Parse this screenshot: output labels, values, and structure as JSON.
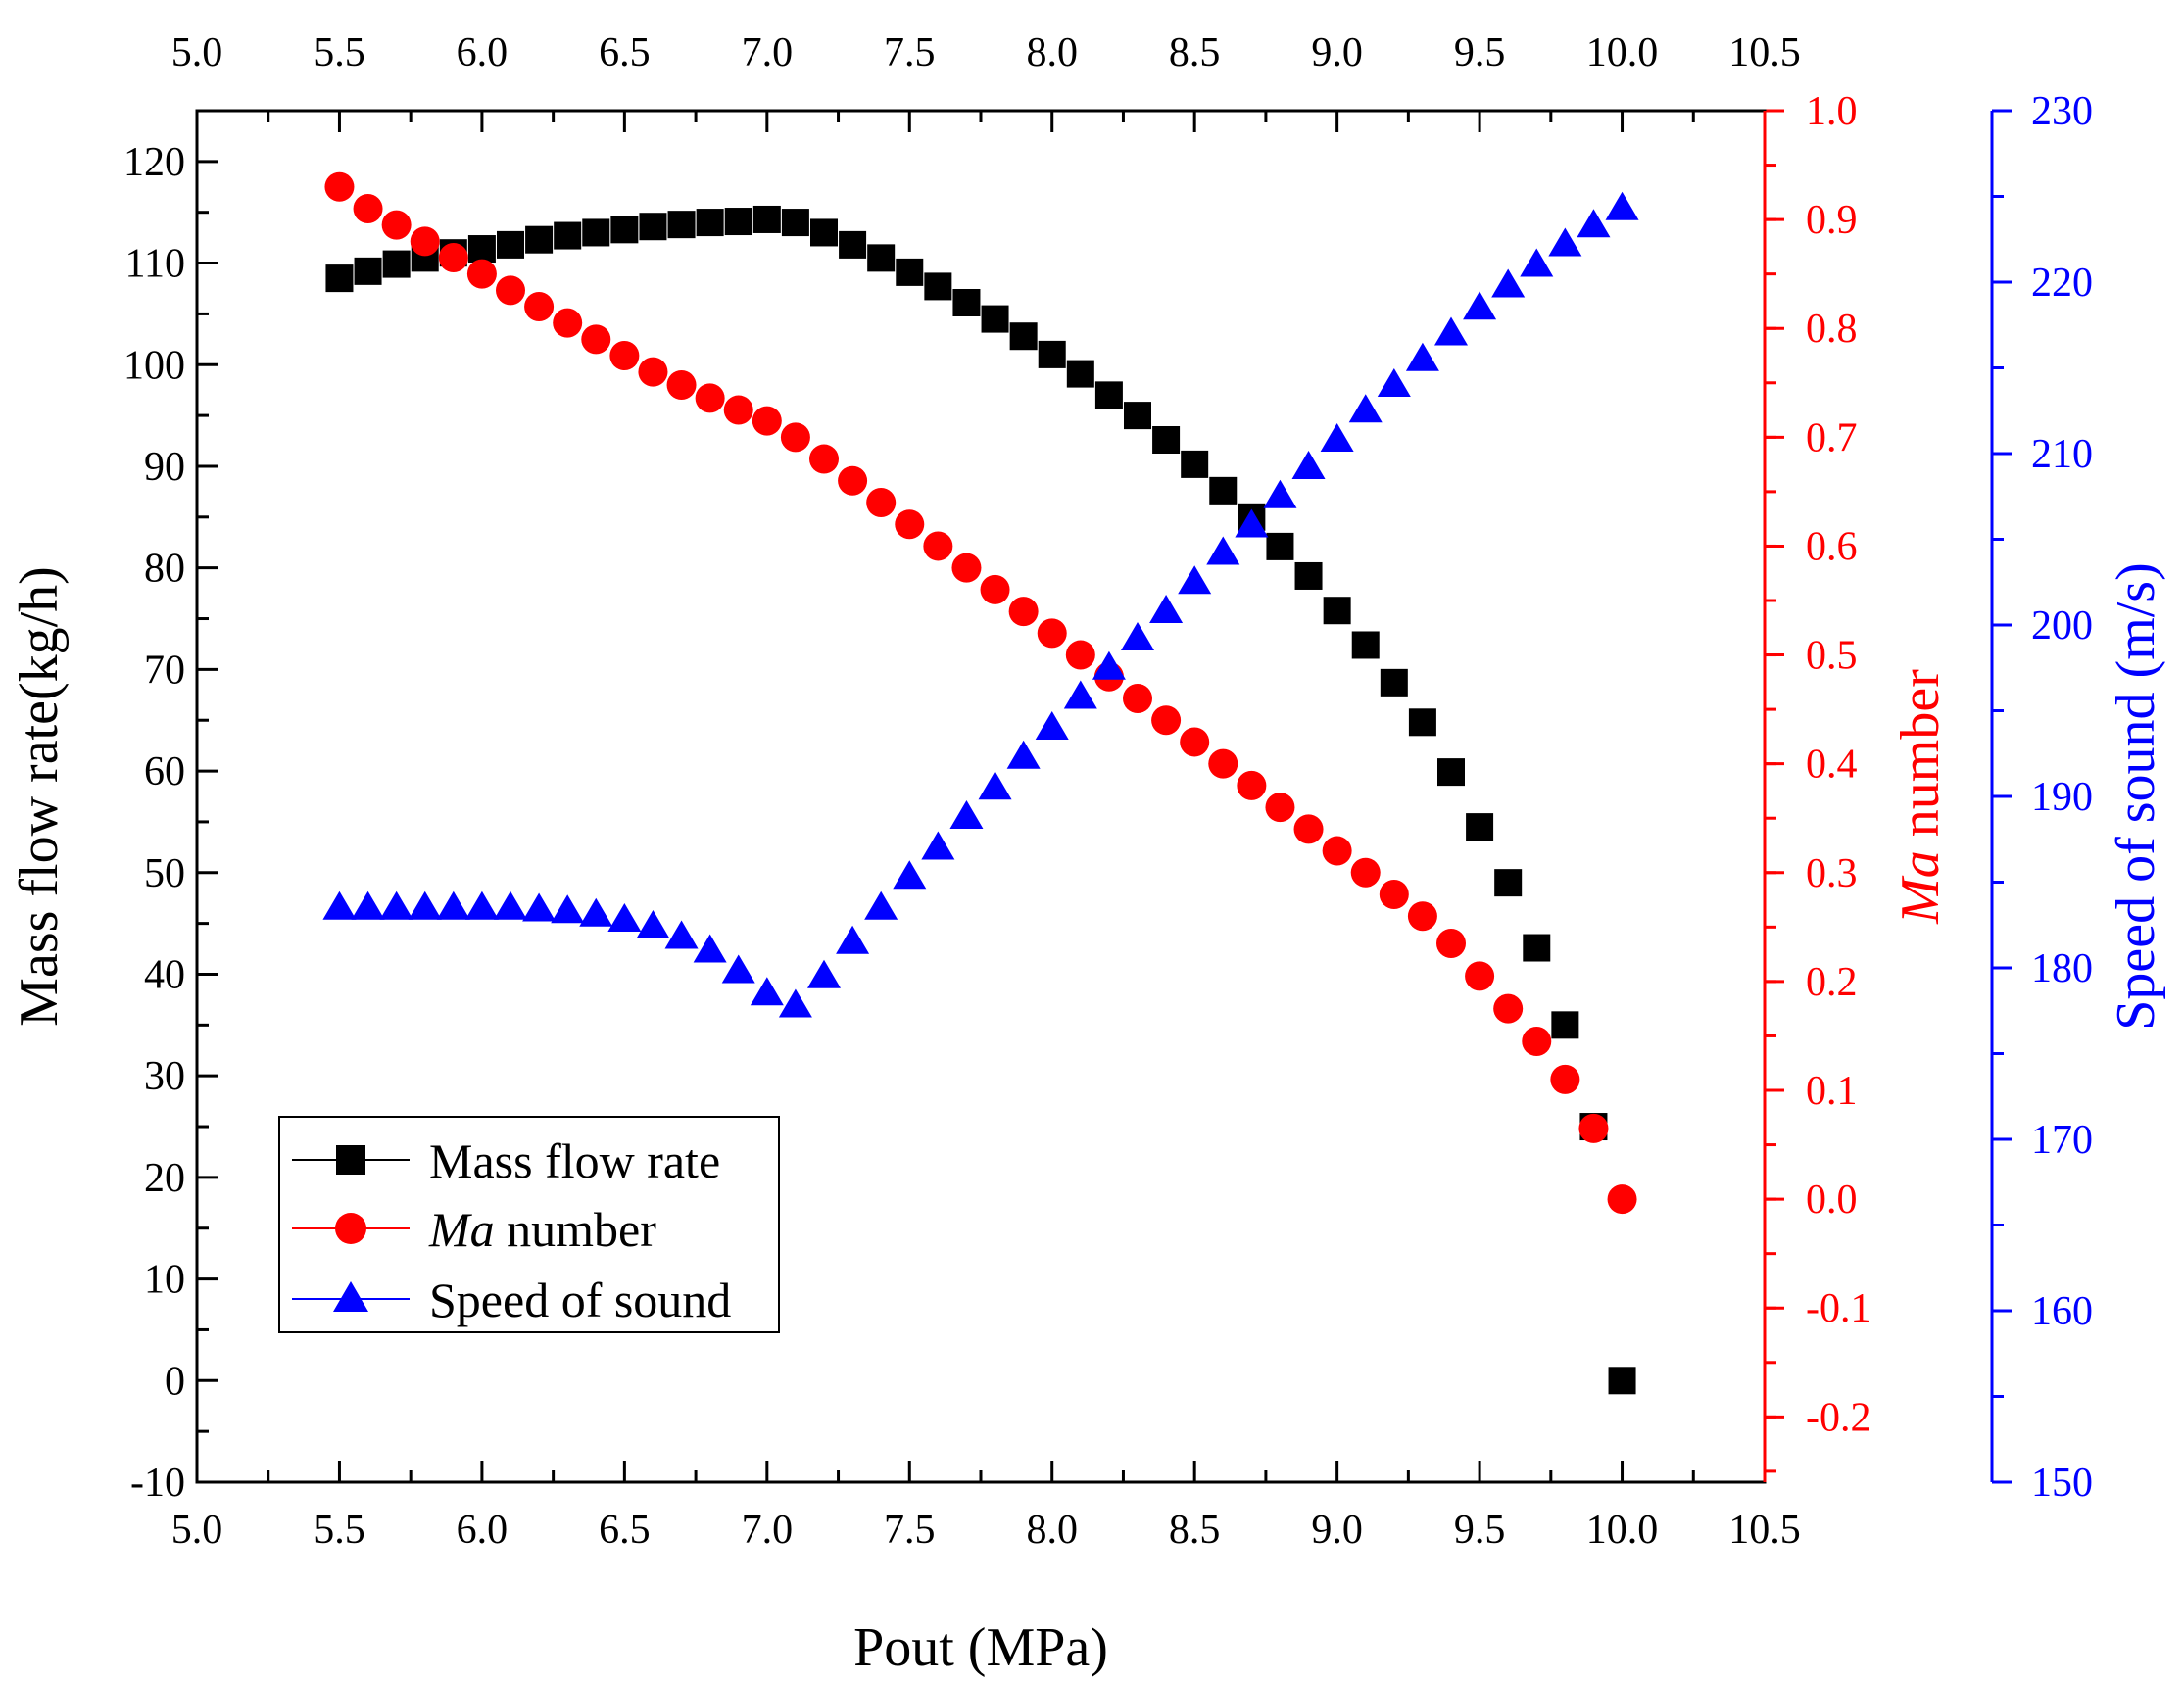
{
  "chart_data": {
    "type": "scatter",
    "x_axis": {
      "label": "Pout (MPa)",
      "range": [
        5.0,
        10.5
      ],
      "ticks": [
        "5.0",
        "5.5",
        "6.0",
        "6.5",
        "7.0",
        "7.5",
        "8.0",
        "8.5",
        "9.0",
        "9.5",
        "10.0",
        "10.5"
      ],
      "top_ticks": [
        "5.0",
        "5.5",
        "6.0",
        "6.5",
        "7.0",
        "7.5",
        "8.0",
        "8.5",
        "9.0",
        "9.5",
        "10.0",
        "10.5"
      ]
    },
    "left_axis": {
      "label": "Mass flow rate(kg/h)",
      "range": [
        -10,
        125
      ],
      "ticks": [
        "-10",
        "0",
        "10",
        "20",
        "30",
        "40",
        "50",
        "60",
        "70",
        "80",
        "90",
        "100",
        "110",
        "120"
      ],
      "color": "#000000"
    },
    "right_axis_1": {
      "label_italic": "Ma",
      "label_rest": " number",
      "range": [
        -0.26,
        1.0
      ],
      "ticks": [
        "-0.2",
        "-0.1",
        "0.0",
        "0.1",
        "0.2",
        "0.3",
        "0.4",
        "0.5",
        "0.6",
        "0.7",
        "0.8",
        "0.9",
        "1.0"
      ],
      "color": "#ff0000"
    },
    "right_axis_2": {
      "label": "Speed of sound (m/s)",
      "range": [
        150,
        230
      ],
      "ticks": [
        "150",
        "160",
        "170",
        "180",
        "190",
        "200",
        "210",
        "220",
        "230"
      ],
      "color": "#0000ff"
    },
    "x": [
      5.5,
      5.6,
      5.7,
      5.8,
      5.9,
      6.0,
      6.1,
      6.2,
      6.3,
      6.4,
      6.5,
      6.6,
      6.7,
      6.8,
      6.9,
      7.0,
      7.1,
      7.2,
      7.3,
      7.4,
      7.5,
      7.6,
      7.7,
      7.8,
      7.9,
      8.0,
      8.1,
      8.2,
      8.3,
      8.4,
      8.5,
      8.6,
      8.7,
      8.8,
      8.9,
      9.0,
      9.1,
      9.2,
      9.3,
      9.4,
      9.5,
      9.6,
      9.7,
      9.8,
      9.9,
      10.0
    ],
    "series": [
      {
        "name": "Mass flow rate",
        "axis": "left",
        "marker": "square",
        "color": "#000000",
        "values": [
          108.5,
          109.2,
          109.9,
          110.5,
          111.0,
          111.4,
          111.8,
          112.3,
          112.7,
          113.0,
          113.3,
          113.6,
          113.8,
          114.0,
          114.1,
          114.3,
          114.0,
          113.0,
          111.8,
          110.5,
          109.1,
          107.7,
          106.1,
          104.5,
          102.8,
          101.0,
          99.1,
          97.0,
          95.0,
          92.6,
          90.2,
          87.6,
          85.0,
          82.1,
          79.2,
          75.8,
          72.4,
          68.7,
          64.8,
          59.9,
          54.5,
          49.0,
          42.6,
          35.0,
          25.0,
          0.0
        ]
      },
      {
        "name": "Ma number",
        "name_italic": "Ma",
        "name_rest": " number",
        "axis": "right1",
        "marker": "circle",
        "color": "#ff0000",
        "values": [
          0.93,
          0.91,
          0.895,
          0.88,
          0.865,
          0.85,
          0.835,
          0.82,
          0.805,
          0.79,
          0.775,
          0.76,
          0.748,
          0.736,
          0.725,
          0.715,
          0.7,
          0.68,
          0.66,
          0.64,
          0.62,
          0.6,
          0.58,
          0.56,
          0.54,
          0.52,
          0.5,
          0.48,
          0.46,
          0.44,
          0.42,
          0.4,
          0.38,
          0.36,
          0.34,
          0.32,
          0.3,
          0.28,
          0.26,
          0.235,
          0.205,
          0.175,
          0.145,
          0.11,
          0.065,
          0.0
        ]
      },
      {
        "name": "Speed of sound",
        "axis": "right2",
        "marker": "triangle",
        "color": "#0000ff",
        "values": [
          183.5,
          183.5,
          183.5,
          183.5,
          183.5,
          183.5,
          183.5,
          183.4,
          183.3,
          183.1,
          182.8,
          182.4,
          181.8,
          181.0,
          179.8,
          178.5,
          177.8,
          179.5,
          181.5,
          183.5,
          185.3,
          187.0,
          188.8,
          190.5,
          192.3,
          194.0,
          195.8,
          197.5,
          199.2,
          200.8,
          202.5,
          204.2,
          205.8,
          207.5,
          209.2,
          210.8,
          212.5,
          214.0,
          215.5,
          217.0,
          218.5,
          219.8,
          221.0,
          222.2,
          223.3,
          224.3
        ]
      }
    ],
    "legend_position": "bottom-left"
  }
}
